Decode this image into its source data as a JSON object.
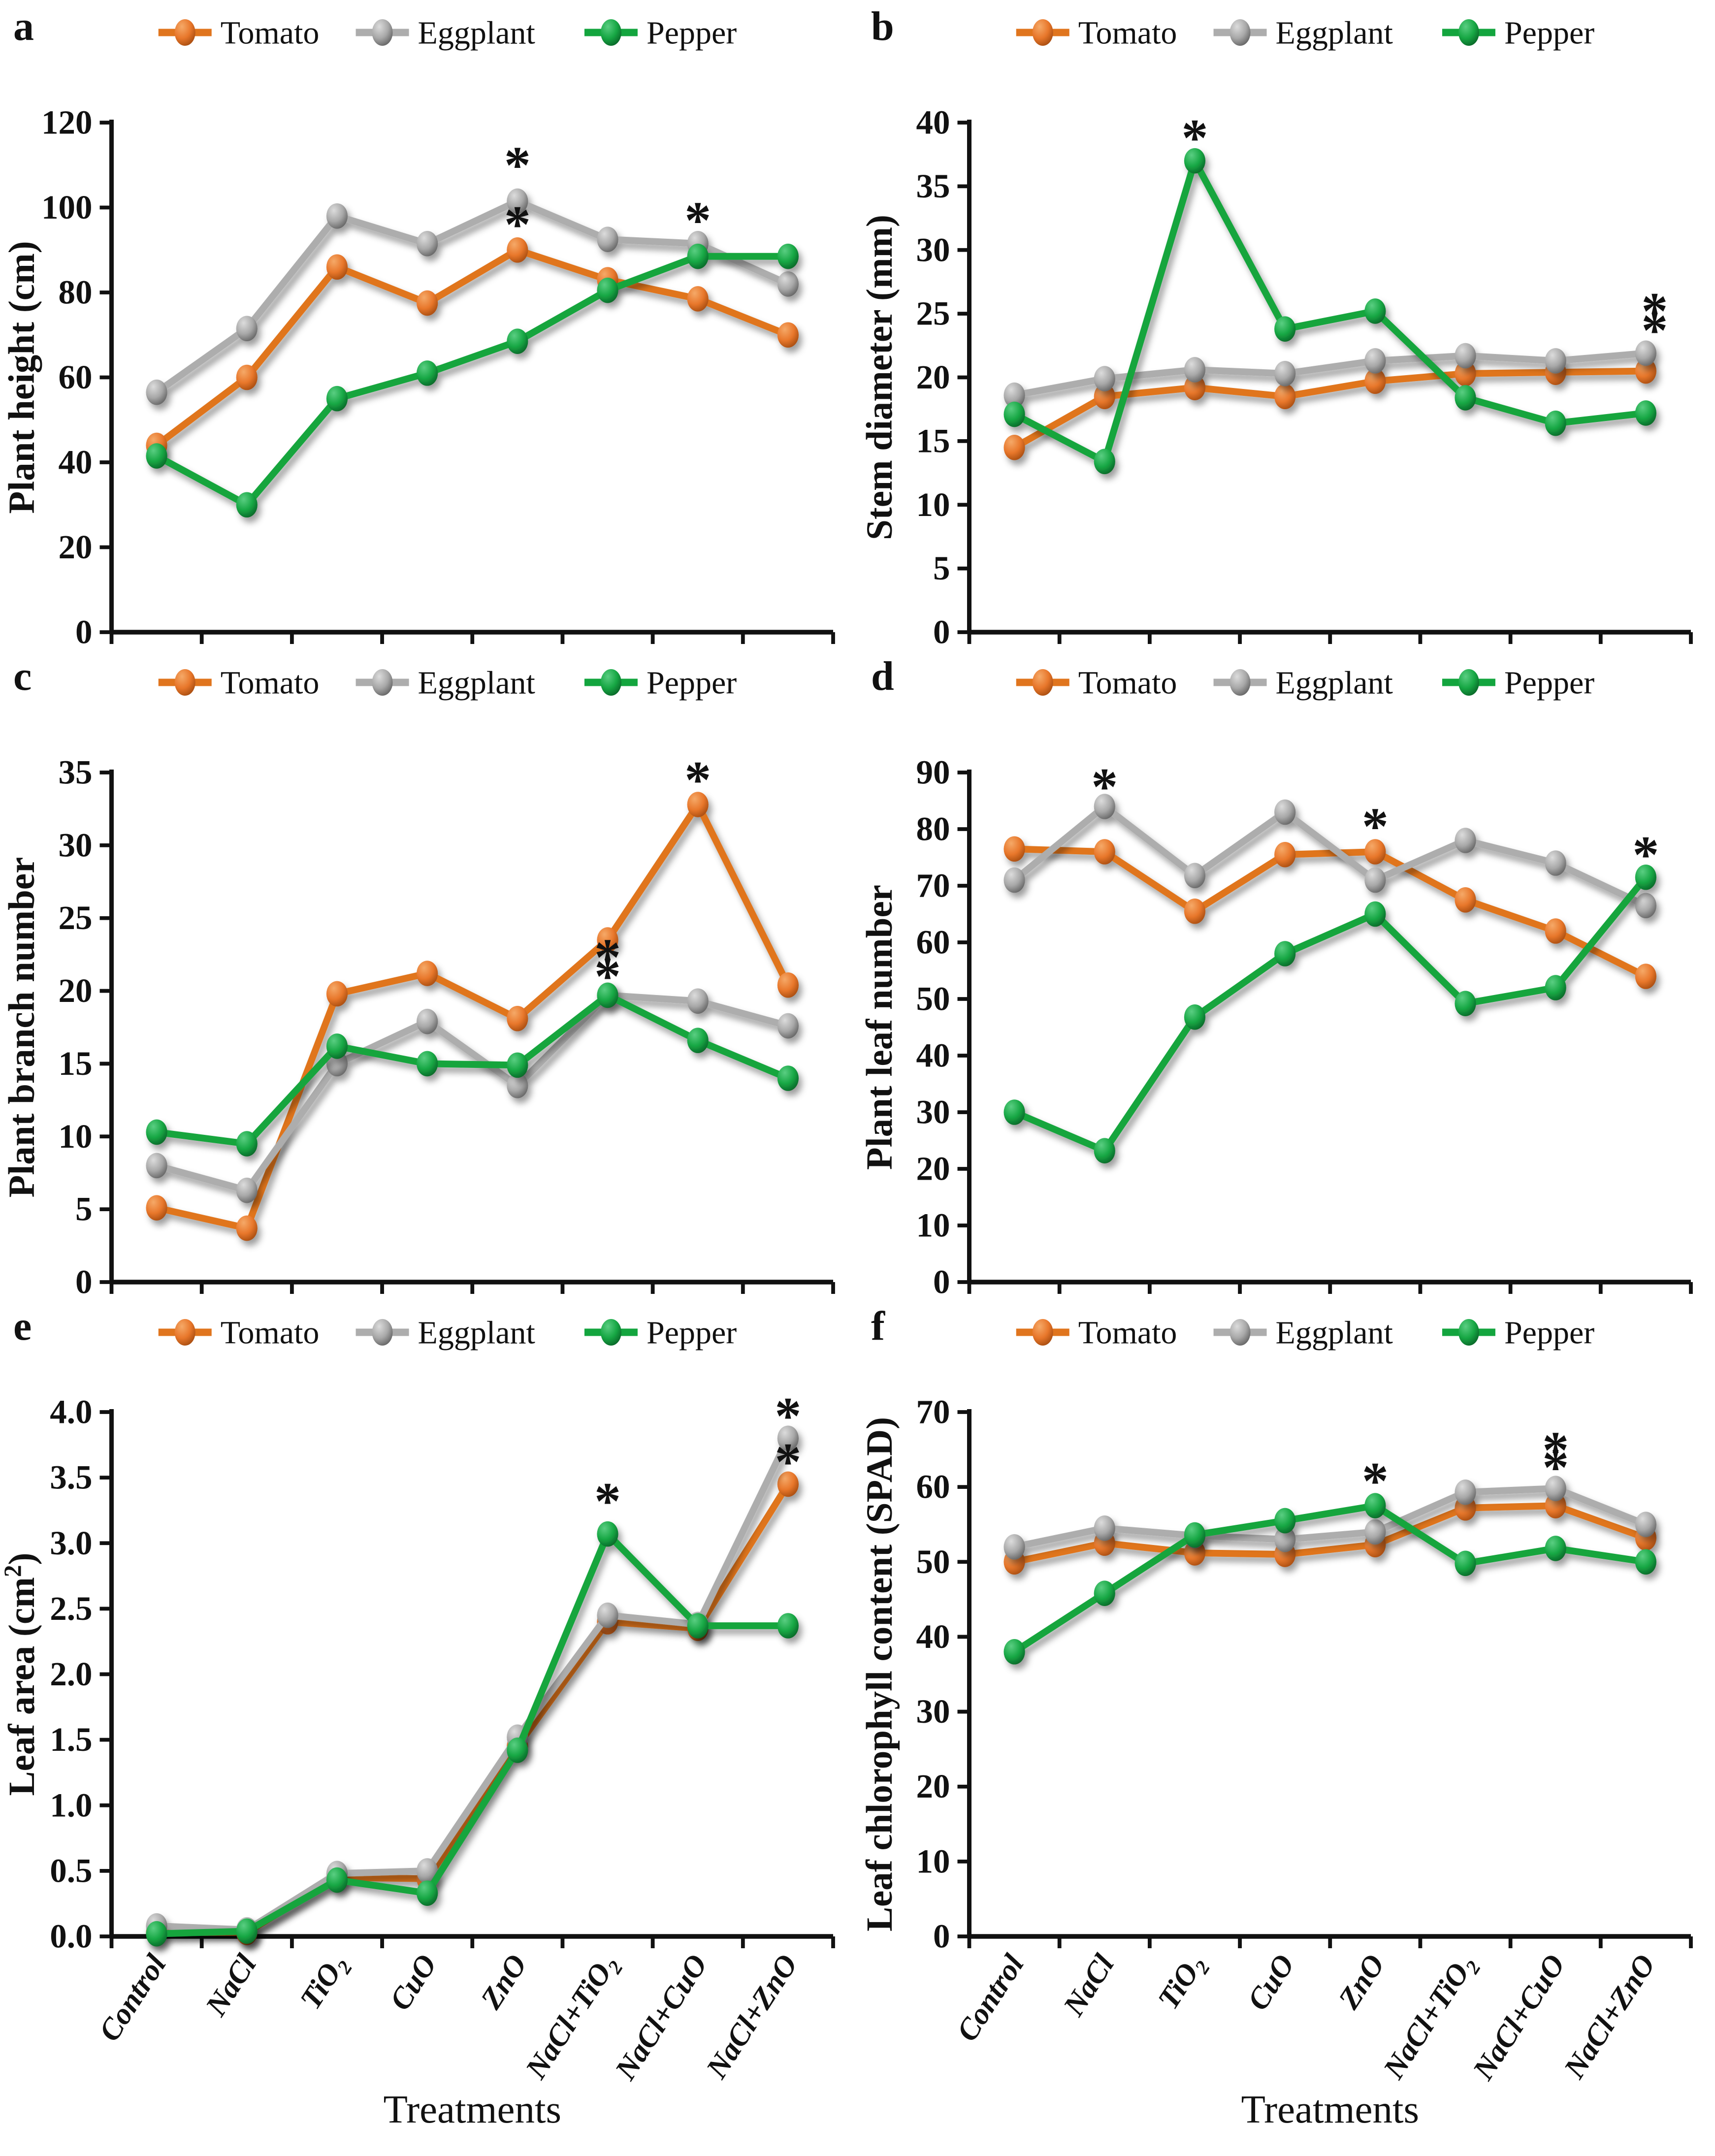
{
  "figure": {
    "background": "#ffffff",
    "x_axis_title": "Treatments",
    "series_colors": {
      "Tomato": {
        "line": "#E0751E",
        "marker_light": "#F5A968",
        "marker_base": "#E8772B",
        "marker_dark": "#A34A0E"
      },
      "Eggplant": {
        "line": "#ADADAD",
        "marker_light": "#DCDCDC",
        "marker_base": "#A8A8A8",
        "marker_dark": "#5F5F5F"
      },
      "Pepper": {
        "line": "#13A53E",
        "marker_light": "#5ACE82",
        "marker_base": "#17A744",
        "marker_dark": "#086226"
      }
    },
    "axis_color": "#111111"
  },
  "legend": {
    "items": [
      {
        "label": "Tomato",
        "color": "#E0751E"
      },
      {
        "label": "Eggplant",
        "color": "#ADADAD"
      },
      {
        "label": "Pepper",
        "color": "#13A53E"
      }
    ]
  },
  "chart_data": [
    {
      "panel_label": "a",
      "type": "line",
      "ylabel": "Plant height (cm)",
      "ylim": [
        0,
        120
      ],
      "ystep": 20,
      "ydecimals": 0,
      "categories": [
        "Control",
        "NaCl",
        "TiO_2",
        "CuO",
        "ZnO",
        "NaCl+TiO_2",
        "NaCl+CuO",
        "NaCl+ZnO"
      ],
      "show_x_labels": false,
      "series": [
        {
          "name": "Tomato",
          "values": [
            44,
            60,
            86,
            77.5,
            90,
            83,
            78.5,
            70
          ]
        },
        {
          "name": "Eggplant",
          "values": [
            56.5,
            71.5,
            98,
            91.5,
            101.5,
            92.5,
            91.5,
            82
          ]
        },
        {
          "name": "Pepper",
          "values": [
            41.5,
            30,
            55,
            61,
            68.5,
            80.5,
            88.5,
            88.5
          ]
        }
      ],
      "annotations": [
        {
          "series": "Eggplant",
          "category": "ZnO",
          "xi": 4,
          "y": 110,
          "symbol": "*"
        },
        {
          "series": "Tomato",
          "category": "ZnO",
          "xi": 4,
          "y": 96,
          "symbol": "*"
        },
        {
          "series": "Pepper",
          "category": "NaCl+CuO",
          "xi": 6,
          "y": 97,
          "symbol": "*"
        }
      ]
    },
    {
      "panel_label": "b",
      "type": "line",
      "ylabel": "Stem diameter (mm)",
      "ylim": [
        0,
        40
      ],
      "ystep": 5,
      "ydecimals": 0,
      "categories": [
        "Control",
        "NaCl",
        "TiO_2",
        "CuO",
        "ZnO",
        "NaCl+TiO_2",
        "NaCl+CuO",
        "NaCl+ZnO"
      ],
      "show_x_labels": false,
      "series": [
        {
          "name": "Tomato",
          "values": [
            14.5,
            18.5,
            19.2,
            18.5,
            19.7,
            20.3,
            20.4,
            20.5
          ]
        },
        {
          "name": "Eggplant",
          "values": [
            18.6,
            19.9,
            20.6,
            20.3,
            21.3,
            21.7,
            21.3,
            21.9
          ]
        },
        {
          "name": "Pepper",
          "values": [
            17.1,
            13.4,
            37,
            23.8,
            25.2,
            18.4,
            16.4,
            17.2
          ]
        }
      ],
      "annotations": [
        {
          "series": "Pepper",
          "category": "TiO_2",
          "xi": 2,
          "y": 38.8,
          "symbol": "*"
        },
        {
          "series": "Eggplant",
          "category": "NaCl+ZnO",
          "xi": 7,
          "y": 25.2,
          "symbol": "*",
          "dx": 6
        },
        {
          "series": "Tomato",
          "category": "NaCl+ZnO",
          "xi": 7,
          "y": 23.7,
          "symbol": "*",
          "dx": 6
        }
      ]
    },
    {
      "panel_label": "c",
      "type": "line",
      "ylabel": "Plant branch number",
      "ylim": [
        0,
        35
      ],
      "ystep": 5,
      "ydecimals": 0,
      "categories": [
        "Control",
        "NaCl",
        "TiO_2",
        "CuO",
        "ZnO",
        "NaCl+TiO_2",
        "NaCl+CuO",
        "NaCl+ZnO"
      ],
      "show_x_labels": false,
      "series": [
        {
          "name": "Tomato",
          "values": [
            5.1,
            3.7,
            19.8,
            21.2,
            18.1,
            23.5,
            32.8,
            20.4
          ]
        },
        {
          "name": "Eggplant",
          "values": [
            8,
            6.3,
            15,
            17.9,
            13.5,
            19.7,
            19.3,
            17.6
          ]
        },
        {
          "name": "Pepper",
          "values": [
            10.3,
            9.5,
            16.2,
            15,
            14.9,
            19.7,
            16.6,
            14
          ]
        }
      ],
      "annotations": [
        {
          "series": "Tomato",
          "category": "NaCl+CuO",
          "xi": 6,
          "y": 34.5,
          "symbol": "*"
        },
        {
          "series": "Eggplant",
          "category": "NaCl+TiO_2",
          "xi": 5,
          "y": 22.3,
          "symbol": "*"
        },
        {
          "series": "Pepper",
          "category": "NaCl+TiO_2",
          "xi": 5,
          "y": 21.0,
          "symbol": "*"
        }
      ]
    },
    {
      "panel_label": "d",
      "type": "line",
      "ylabel": "Plant leaf number",
      "ylim": [
        0,
        90
      ],
      "ystep": 10,
      "ydecimals": 0,
      "categories": [
        "Control",
        "NaCl",
        "TiO_2",
        "CuO",
        "ZnO",
        "NaCl+TiO_2",
        "NaCl+CuO",
        "NaCl+ZnO"
      ],
      "show_x_labels": false,
      "series": [
        {
          "name": "Tomato",
          "values": [
            76.5,
            76,
            65.5,
            75.5,
            76,
            67.5,
            62,
            54
          ]
        },
        {
          "name": "Eggplant",
          "values": [
            71,
            84,
            71.8,
            83,
            71,
            78,
            74,
            66.5
          ]
        },
        {
          "name": "Pepper",
          "values": [
            30,
            23.2,
            46.8,
            58,
            65,
            49.2,
            52,
            71.5
          ]
        }
      ],
      "annotations": [
        {
          "series": "Eggplant",
          "category": "NaCl",
          "xi": 1,
          "y": 87.5,
          "symbol": "*"
        },
        {
          "series": "Tomato",
          "category": "ZnO",
          "xi": 4,
          "y": 80.5,
          "symbol": "*"
        },
        {
          "series": "Pepper",
          "category": "NaCl+ZnO",
          "xi": 7,
          "y": 75.5,
          "symbol": "*"
        }
      ]
    },
    {
      "panel_label": "e",
      "type": "line",
      "ylabel": "Leaf area (cm^2)",
      "ylim": [
        0,
        4.0
      ],
      "ystep": 0.5,
      "ydecimals": 1,
      "categories": [
        "Control",
        "NaCl",
        "TiO_2",
        "CuO",
        "ZnO",
        "NaCl+TiO_2",
        "NaCl+CuO",
        "NaCl+ZnO"
      ],
      "show_x_labels": true,
      "series": [
        {
          "name": "Tomato",
          "values": [
            0.03,
            0.03,
            0.45,
            0.44,
            1.45,
            2.4,
            2.35,
            3.45
          ]
        },
        {
          "name": "Eggplant",
          "values": [
            0.08,
            0.05,
            0.48,
            0.5,
            1.52,
            2.45,
            2.38,
            3.8
          ]
        },
        {
          "name": "Pepper",
          "values": [
            0.02,
            0.04,
            0.43,
            0.33,
            1.42,
            3.07,
            2.37,
            2.37
          ]
        }
      ],
      "annotations": [
        {
          "series": "Pepper",
          "category": "NaCl+TiO_2",
          "xi": 5,
          "y": 3.32,
          "symbol": "*"
        },
        {
          "series": "Eggplant",
          "category": "NaCl+ZnO",
          "xi": 7,
          "y": 3.97,
          "symbol": "*"
        },
        {
          "series": "Tomato",
          "category": "NaCl+ZnO",
          "xi": 7,
          "y": 3.62,
          "symbol": "*"
        }
      ]
    },
    {
      "panel_label": "f",
      "type": "line",
      "ylabel": "Leaf chlorophyll content (SPAD)",
      "ylim": [
        0,
        70
      ],
      "ystep": 10,
      "ydecimals": 0,
      "categories": [
        "Control",
        "NaCl",
        "TiO_2",
        "CuO",
        "ZnO",
        "NaCl+TiO_2",
        "NaCl+CuO",
        "NaCl+ZnO"
      ],
      "show_x_labels": true,
      "series": [
        {
          "name": "Tomato",
          "values": [
            50,
            52.5,
            51.2,
            51,
            52.3,
            57.2,
            57.5,
            53.2
          ]
        },
        {
          "name": "Eggplant",
          "values": [
            52,
            54.5,
            53.5,
            53,
            54,
            59.3,
            59.8,
            55
          ]
        },
        {
          "name": "Pepper",
          "values": [
            38,
            45.8,
            53.6,
            55.5,
            57.5,
            49.8,
            51.8,
            50
          ]
        }
      ],
      "annotations": [
        {
          "series": "Pepper",
          "category": "ZnO",
          "xi": 4,
          "y": 60.8,
          "symbol": "*"
        },
        {
          "series": "Eggplant",
          "category": "NaCl+CuO",
          "xi": 6,
          "y": 64.9,
          "symbol": "*"
        },
        {
          "series": "Tomato",
          "category": "NaCl+CuO",
          "xi": 6,
          "y": 62.6,
          "symbol": "*"
        }
      ]
    }
  ]
}
